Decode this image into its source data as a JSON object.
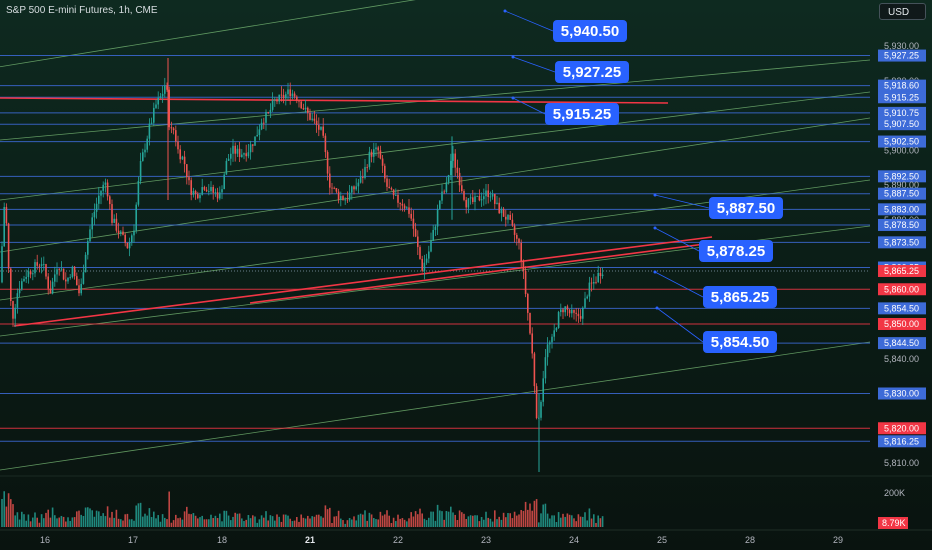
{
  "header": {
    "title": "S&P 500 E-mini Futures, 1h, CME",
    "currency_button": "USD"
  },
  "colors": {
    "up": "#26a69a",
    "down": "#ef5350",
    "callout": "#2962ff",
    "hline": "#3d6bd8",
    "trendline": "#f23645",
    "channel": "#7ec27a"
  },
  "chart_data": {
    "type": "candlestick",
    "symbol": "S&P 500 E-mini Futures",
    "interval": "1h",
    "exchange": "CME",
    "x_tick_labels": [
      "16",
      "17",
      "18",
      "21",
      "22",
      "23",
      "24",
      "25",
      "28",
      "29"
    ],
    "y_range": [
      5805,
      5945
    ],
    "y_axis_labels": [
      5930.0,
      5927.25,
      5920.0,
      5918.6,
      5915.25,
      5910.75,
      5907.5,
      5902.5,
      5900.0,
      5892.5,
      5890.0,
      5887.5,
      5883.0,
      5880.0,
      5878.5,
      5873.5,
      5866.25,
      5865.25,
      5860.0,
      5854.5,
      5850.0,
      5844.5,
      5840.0,
      5830.0,
      5820.0,
      5816.25,
      5810.0
    ],
    "highlighted_axis_labels": [
      {
        "value": 5860.0,
        "color": "#f23645"
      },
      {
        "value": 5850.0,
        "color": "#f23645"
      },
      {
        "value": 5820.0,
        "color": "#f23645"
      },
      {
        "value": 5865.25,
        "color": "#f23645"
      }
    ],
    "horizontal_levels": [
      5927.25,
      5918.6,
      5915.25,
      5910.75,
      5907.5,
      5902.5,
      5892.5,
      5887.5,
      5883.0,
      5878.5,
      5873.5,
      5866.25,
      5860.0,
      5854.5,
      5850.0,
      5844.5,
      5830.0,
      5820.0,
      5816.25
    ],
    "callouts": [
      "5,940.50",
      "5,927.25",
      "5,915.25",
      "5,887.50",
      "5,878.25",
      "5,865.25",
      "5,854.50"
    ],
    "volume_axis_label": "200K",
    "current_volume_label": "8.79K",
    "close_path": [
      [
        0,
        5862
      ],
      [
        5,
        5888
      ],
      [
        8,
        5868
      ],
      [
        12,
        5851
      ],
      [
        18,
        5860
      ],
      [
        25,
        5864
      ],
      [
        33,
        5866
      ],
      [
        42,
        5868
      ],
      [
        50,
        5859
      ],
      [
        58,
        5868
      ],
      [
        66,
        5862
      ],
      [
        72,
        5866
      ],
      [
        80,
        5858
      ],
      [
        85,
        5870
      ],
      [
        92,
        5880
      ],
      [
        100,
        5888
      ],
      [
        106,
        5891
      ],
      [
        112,
        5880
      ],
      [
        120,
        5876
      ],
      [
        128,
        5872
      ],
      [
        134,
        5878
      ],
      [
        140,
        5895
      ],
      [
        148,
        5905
      ],
      [
        156,
        5913
      ],
      [
        162,
        5916
      ],
      [
        166,
        5920
      ],
      [
        170,
        5905
      ],
      [
        174,
        5906
      ],
      [
        178,
        5900
      ],
      [
        184,
        5897
      ],
      [
        190,
        5889
      ],
      [
        196,
        5887
      ],
      [
        204,
        5890
      ],
      [
        212,
        5888
      ],
      [
        220,
        5887
      ],
      [
        226,
        5896
      ],
      [
        232,
        5900
      ],
      [
        240,
        5899
      ],
      [
        248,
        5900
      ],
      [
        256,
        5904
      ],
      [
        262,
        5909
      ],
      [
        268,
        5910
      ],
      [
        274,
        5914
      ],
      [
        282,
        5915
      ],
      [
        290,
        5917
      ],
      [
        298,
        5915
      ],
      [
        306,
        5911
      ],
      [
        314,
        5908
      ],
      [
        322,
        5905
      ],
      [
        330,
        5890
      ],
      [
        338,
        5887
      ],
      [
        346,
        5886
      ],
      [
        354,
        5889
      ],
      [
        362,
        5892
      ],
      [
        370,
        5899
      ],
      [
        378,
        5900
      ],
      [
        386,
        5890
      ],
      [
        394,
        5886
      ],
      [
        402,
        5885
      ],
      [
        410,
        5882
      ],
      [
        416,
        5874
      ],
      [
        422,
        5866
      ],
      [
        428,
        5870
      ],
      [
        434,
        5877
      ],
      [
        440,
        5886
      ],
      [
        446,
        5889
      ],
      [
        452,
        5899
      ],
      [
        458,
        5893
      ],
      [
        466,
        5885
      ],
      [
        474,
        5885
      ],
      [
        482,
        5887
      ],
      [
        490,
        5888
      ],
      [
        496,
        5884
      ],
      [
        502,
        5882
      ],
      [
        508,
        5880
      ],
      [
        514,
        5876
      ],
      [
        520,
        5872
      ],
      [
        526,
        5858
      ],
      [
        532,
        5842
      ],
      [
        538,
        5819
      ],
      [
        542,
        5832
      ],
      [
        546,
        5843
      ],
      [
        552,
        5845
      ],
      [
        558,
        5852
      ],
      [
        564,
        5855
      ],
      [
        570,
        5853
      ],
      [
        576,
        5852
      ],
      [
        582,
        5853
      ],
      [
        588,
        5860
      ],
      [
        594,
        5862
      ],
      [
        600,
        5865
      ],
      [
        604,
        5866
      ]
    ]
  }
}
